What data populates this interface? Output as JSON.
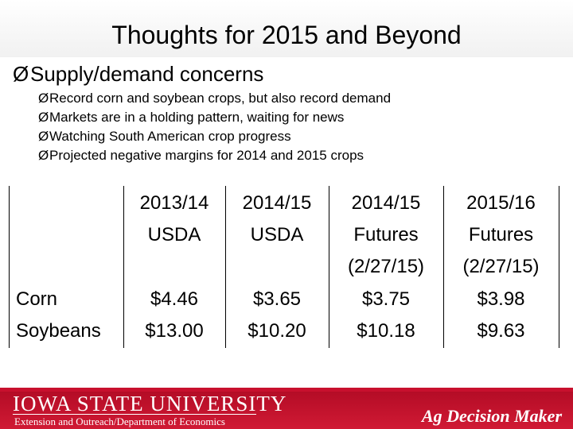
{
  "slide": {
    "title": "Thoughts for 2015 and Beyond",
    "main_point": "Supply/demand concerns",
    "sub_points": [
      "Record corn and soybean crops, but also record demand",
      "Markets are in a holding pattern, waiting for news",
      "Watching South American crop progress",
      "Projected negative margins for 2014 and 2015 crops"
    ],
    "bullet_glyph": "Ø"
  },
  "table": {
    "columns": [
      {
        "line1": "2013/14",
        "line2": "USDA",
        "line3": ""
      },
      {
        "line1": "2014/15",
        "line2": "USDA",
        "line3": ""
      },
      {
        "line1": "2014/15",
        "line2": "Futures",
        "line3": "(2/27/15)"
      },
      {
        "line1": "2015/16",
        "line2": "Futures",
        "line3": "(2/27/15)"
      }
    ],
    "rows": [
      {
        "label": "Corn",
        "values": [
          "$4.46",
          "$3.65",
          "$3.75",
          "$3.98"
        ]
      },
      {
        "label": "Soybeans",
        "values": [
          "$13.00",
          "$10.20",
          "$10.18",
          "$9.63"
        ]
      }
    ]
  },
  "footer": {
    "university": "IOWA STATE UNIVERSITY",
    "department": "Extension and Outreach/Department of Economics",
    "brand": "Ag Decision Maker",
    "color": "#c8102e"
  }
}
